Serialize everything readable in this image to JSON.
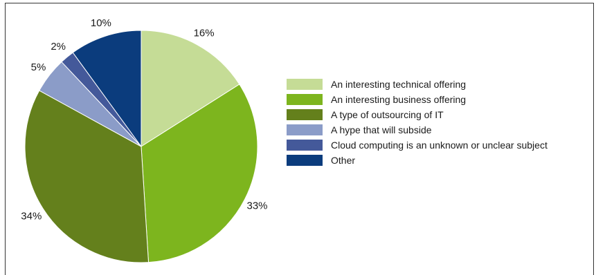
{
  "chart_data": {
    "type": "pie",
    "categories": [
      "An interesting technical offering",
      "An interesting business offering",
      "A type of outsourcing of IT",
      "A hype that will subside",
      "Cloud computing is an unknown or unclear subject",
      "Other"
    ],
    "values": [
      16,
      33,
      34,
      5,
      2,
      10
    ],
    "labels": [
      "16%",
      "33%",
      "34%",
      "5%",
      "2%",
      "10%"
    ],
    "colors": [
      "#c5dc96",
      "#7db51e",
      "#64801c",
      "#8b9cc8",
      "#44599a",
      "#0b3c7d"
    ],
    "start_angle": "12 o'clock",
    "direction": "clockwise",
    "legend_position": "right",
    "title": "",
    "legend": [
      {
        "label": "An interesting technical offering",
        "color": "#c5dc96"
      },
      {
        "label": "An interesting business offering",
        "color": "#7db51e"
      },
      {
        "label": "A type of outsourcing of IT",
        "color": "#64801c"
      },
      {
        "label": "A hype that will subside",
        "color": "#8b9cc8"
      },
      {
        "label": "Cloud computing is an unknown or unclear subject",
        "color": "#44599a"
      },
      {
        "label": "Other",
        "color": "#0b3c7d"
      }
    ]
  }
}
